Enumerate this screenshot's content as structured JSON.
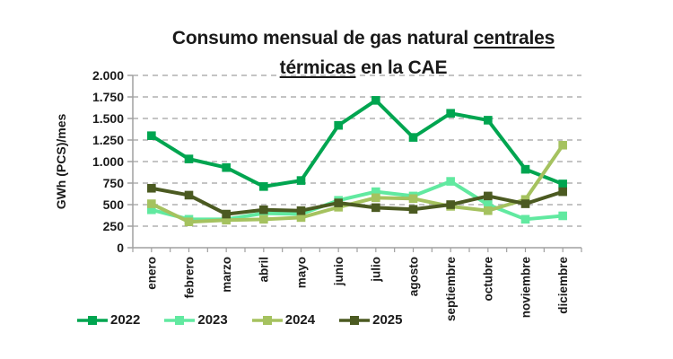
{
  "title": {
    "line1_text": "Consumo mensual de gas natural ",
    "line1_underlined": "centrales",
    "line2_underlined": "térmicas",
    "line2_text": " en la CAE"
  },
  "chart_data": {
    "type": "line",
    "title": "Consumo mensual de gas natural centrales térmicas en la CAE",
    "title_underlined_phrase": "centrales térmicas",
    "ylabel": "GWh (PCS)/mes",
    "xlabel": "",
    "categories": [
      "enero",
      "febrero",
      "marzo",
      "abril",
      "mayo",
      "junio",
      "julio",
      "agosto",
      "septiembre",
      "octubre",
      "noviembre",
      "diciembre"
    ],
    "series": [
      {
        "name": "2022",
        "color": "#00A550",
        "values": [
          1300,
          1030,
          930,
          710,
          780,
          1420,
          1710,
          1280,
          1560,
          1480,
          910,
          740
        ]
      },
      {
        "name": "2023",
        "color": "#61E9A0",
        "values": [
          440,
          330,
          330,
          400,
          390,
          550,
          650,
          600,
          770,
          500,
          330,
          370
        ]
      },
      {
        "name": "2024",
        "color": "#A5C25F",
        "values": [
          510,
          300,
          320,
          330,
          350,
          470,
          580,
          570,
          480,
          430,
          560,
          1190
        ]
      },
      {
        "name": "2025",
        "color": "#4B5A21",
        "values": [
          690,
          610,
          390,
          440,
          430,
          520,
          465,
          445,
          500,
          600,
          510,
          650
        ]
      }
    ],
    "ylim": [
      0,
      2000
    ],
    "y_tick_step": 250,
    "y_tick_labels": [
      "0",
      "250",
      "500",
      "750",
      "1.000",
      "1.250",
      "1.500",
      "1.750",
      "2.000"
    ],
    "grid": "horizontal-dashed",
    "grid_color": "#B0B0B0",
    "axis_color": "#A0A0A0",
    "legend_position": "bottom-left",
    "x_label_rotation": 90
  }
}
